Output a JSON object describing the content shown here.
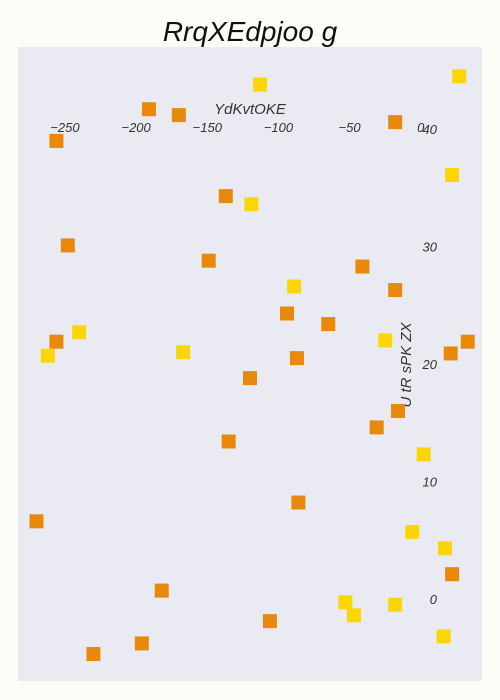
{
  "chart_data": {
    "type": "scatter",
    "title": "RrqXEdpjoo g",
    "xlabel": "YdKvtOKE",
    "ylabel": "U tR sPK  ZX",
    "x_ticks": [
      -250,
      -200,
      -150,
      -100,
      -50,
      0
    ],
    "y_ticks": [
      0,
      10,
      20,
      30,
      40
    ],
    "xlim": [
      -283,
      43
    ],
    "ylim": [
      -7,
      47
    ],
    "grid": false,
    "colors": {
      "background": "#eaeaf2",
      "series_a": "#e8890c",
      "series_b": "#fbd606"
    },
    "series": [
      {
        "color": "#e8890c",
        "points": [
          {
            "x": -191,
            "y": 41.7
          },
          {
            "x": -170,
            "y": 41.2
          },
          {
            "x": -256,
            "y": 39.0
          },
          {
            "x": -18,
            "y": 40.6
          },
          {
            "x": -137,
            "y": 34.3
          },
          {
            "x": -248,
            "y": 30.1
          },
          {
            "x": -149,
            "y": 28.8
          },
          {
            "x": -41,
            "y": 28.3
          },
          {
            "x": -18,
            "y": 26.3
          },
          {
            "x": -94,
            "y": 24.3
          },
          {
            "x": -65,
            "y": 23.4
          },
          {
            "x": -256,
            "y": 21.9
          },
          {
            "x": 33,
            "y": 21.9
          },
          {
            "x": 21,
            "y": 20.9
          },
          {
            "x": -87,
            "y": 20.5
          },
          {
            "x": -120,
            "y": 18.8
          },
          {
            "x": -16,
            "y": 16.0
          },
          {
            "x": -31,
            "y": 14.6
          },
          {
            "x": -135,
            "y": 13.4
          },
          {
            "x": -86,
            "y": 8.2
          },
          {
            "x": -270,
            "y": 6.6
          },
          {
            "x": 22,
            "y": 2.1
          },
          {
            "x": -182,
            "y": 0.7
          },
          {
            "x": -106,
            "y": -1.9
          },
          {
            "x": -196,
            "y": -3.8
          },
          {
            "x": -230,
            "y": -4.7
          }
        ]
      },
      {
        "color": "#fbd606",
        "points": [
          {
            "x": -113,
            "y": 43.8
          },
          {
            "x": 27,
            "y": 44.5
          },
          {
            "x": -119,
            "y": 33.6
          },
          {
            "x": 22,
            "y": 36.1
          },
          {
            "x": -89,
            "y": 26.6
          },
          {
            "x": -240,
            "y": 22.7
          },
          {
            "x": -262,
            "y": 20.7
          },
          {
            "x": -167,
            "y": 21.0
          },
          {
            "x": -25,
            "y": 22.0
          },
          {
            "x": 2,
            "y": 12.3
          },
          {
            "x": -6,
            "y": 5.7
          },
          {
            "x": 17,
            "y": 4.3
          },
          {
            "x": -53,
            "y": -0.3
          },
          {
            "x": -47,
            "y": -1.4
          },
          {
            "x": -18,
            "y": -0.5
          },
          {
            "x": 16,
            "y": -3.2
          }
        ]
      }
    ]
  }
}
